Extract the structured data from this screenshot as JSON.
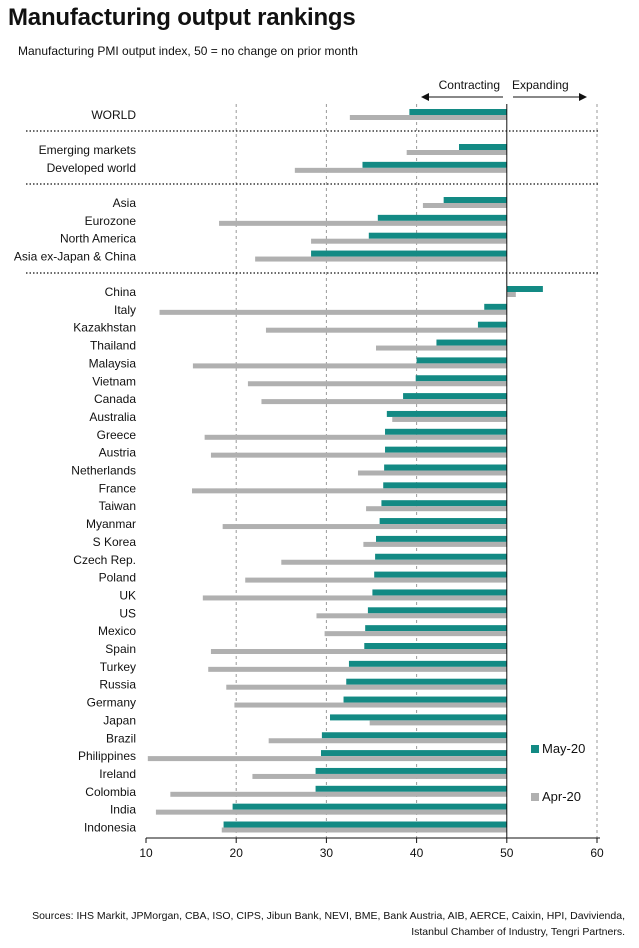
{
  "title": "Manufacturing output rankings",
  "subtitle": "Manufacturing PMI output index, 50 = no change on prior month",
  "annotations": {
    "contracting": "Contracting",
    "expanding": "Expanding"
  },
  "sources": "Sources: IHS Markit, JPMorgan, CBA, ISO, CIPS, Jibun Bank, NEVI, BME, Bank Austria, AIB, AERCE, Caixin, HPI, Davivienda, Istanbul Chamber of Industry, Tengri Partners.",
  "colors": {
    "may": "#138a84",
    "apr": "#b0b0b0"
  },
  "chart_data": {
    "type": "bar",
    "orientation": "horizontal",
    "x_ticks": [
      10,
      20,
      30,
      40,
      50,
      60
    ],
    "xlim": [
      10,
      60
    ],
    "reference_line": 50,
    "grid": "vertical dashed",
    "legend_placement": "bottom-right",
    "groups": [
      {
        "categories": [
          "WORLD"
        ]
      },
      {
        "categories": [
          "Emerging markets",
          "Developed world"
        ]
      },
      {
        "categories": [
          "Asia",
          "Eurozone",
          "North America",
          "Asia ex-Japan & China"
        ]
      },
      {
        "categories": [
          "China",
          "Italy",
          "Kazakhstan",
          "Thailand",
          "Malaysia",
          "Vietnam",
          "Canada",
          "Australia",
          "Greece",
          "Austria",
          "Netherlands",
          "France",
          "Taiwan",
          "Myanmar",
          "S Korea",
          "Czech Rep.",
          "Poland",
          "UK",
          "US",
          "Mexico",
          "Spain",
          "Turkey",
          "Russia",
          "Germany",
          "Japan",
          "Brazil",
          "Philippines",
          "Ireland",
          "Colombia",
          "India",
          "Indonesia"
        ]
      }
    ],
    "series": [
      {
        "name": "May-20",
        "values": [
          39.2,
          44.7,
          34.0,
          43.0,
          35.7,
          34.7,
          28.3,
          54.0,
          47.5,
          46.8,
          42.2,
          40.0,
          39.9,
          38.5,
          36.7,
          36.5,
          36.5,
          36.4,
          36.3,
          36.1,
          35.9,
          35.5,
          35.4,
          35.3,
          35.1,
          34.6,
          34.3,
          34.2,
          32.5,
          32.2,
          31.9,
          30.4,
          29.5,
          29.4,
          28.8,
          28.8,
          19.6,
          18.6
        ]
      },
      {
        "name": "Apr-20",
        "values": [
          32.6,
          38.9,
          26.5,
          40.7,
          18.1,
          28.3,
          22.1,
          51.0,
          11.5,
          23.3,
          35.5,
          15.2,
          21.3,
          22.8,
          37.3,
          16.5,
          17.2,
          33.5,
          15.1,
          34.4,
          18.5,
          34.1,
          25.0,
          21.0,
          16.3,
          28.9,
          29.8,
          17.2,
          16.9,
          18.9,
          19.8,
          34.8,
          23.6,
          10.2,
          21.8,
          12.7,
          11.1,
          18.4
        ]
      }
    ]
  }
}
